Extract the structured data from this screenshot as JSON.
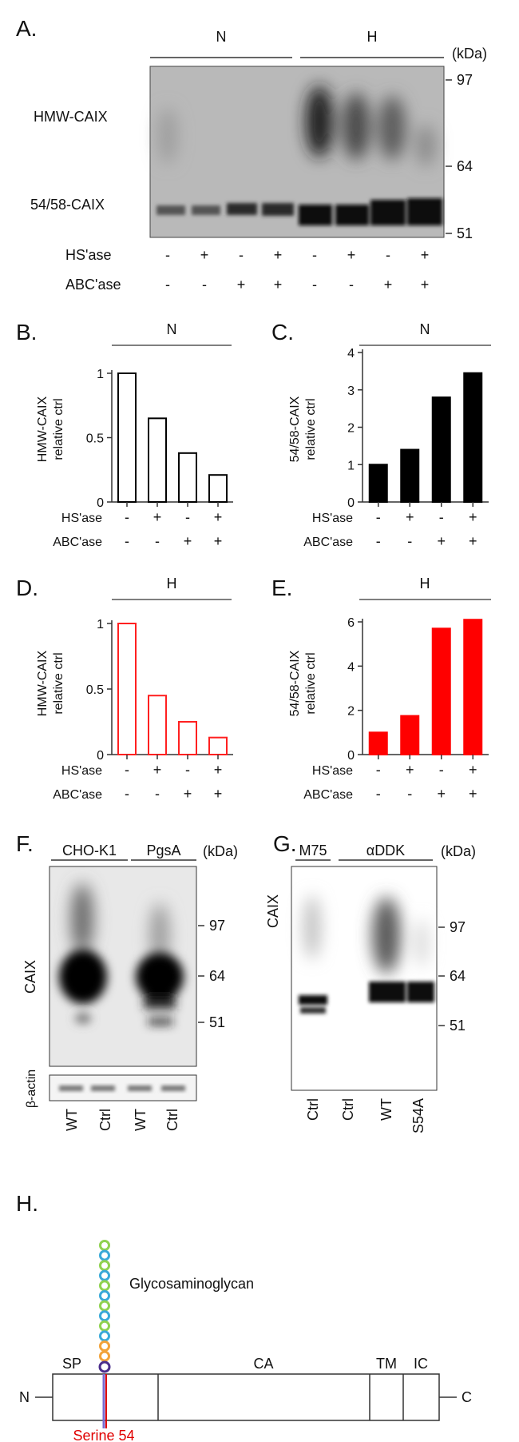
{
  "panels": {
    "A": {
      "letter": "A.",
      "groups": [
        "N",
        "H"
      ],
      "kda_label": "(kDa)",
      "markers": [
        "97",
        "64",
        "51"
      ],
      "bands": [
        "HMW-CAIX",
        "54/58-CAIX"
      ],
      "row1_label": "HS'ase",
      "row2_label": "ABC'ase",
      "row1": [
        "-",
        "+",
        "-",
        "+",
        "-",
        "+",
        "-",
        "+"
      ],
      "row2": [
        "-",
        "-",
        "+",
        "+",
        "-",
        "-",
        "+",
        "+"
      ]
    },
    "B": {
      "letter": "B.",
      "group": "N",
      "ylabel1": "HMW-CAIX",
      "ylabel2": "relative ctrl",
      "ticks": [
        "1",
        "0.5",
        "0"
      ],
      "row1_label": "HS'ase",
      "row2_label": "ABC'ase",
      "row1": [
        "-",
        "+",
        "-",
        "+"
      ],
      "row2": [
        "-",
        "-",
        "+",
        "+"
      ]
    },
    "C": {
      "letter": "C.",
      "group": "N",
      "ylabel1": "54/58-CAIX",
      "ylabel2": "relative ctrl",
      "ticks": [
        "4",
        "3",
        "2",
        "1",
        "0"
      ],
      "row1_label": "HS'ase",
      "row2_label": "ABC'ase",
      "row1": [
        "-",
        "+",
        "-",
        "+"
      ],
      "row2": [
        "-",
        "-",
        "+",
        "+"
      ]
    },
    "D": {
      "letter": "D.",
      "group": "H",
      "ylabel1": "HMW-CAIX",
      "ylabel2": "relative ctrl",
      "ticks": [
        "1",
        "0.5",
        "0"
      ],
      "row1_label": "HS'ase",
      "row2_label": "ABC'ase",
      "row1": [
        "-",
        "+",
        "-",
        "+"
      ],
      "row2": [
        "-",
        "-",
        "+",
        "+"
      ]
    },
    "E": {
      "letter": "E.",
      "group": "H",
      "ylabel1": "54/58-CAIX",
      "ylabel2": "relative ctrl",
      "ticks": [
        "6",
        "4",
        "2",
        "0"
      ],
      "row1_label": "HS'ase",
      "row2_label": "ABC'ase",
      "row1": [
        "-",
        "+",
        "-",
        "+"
      ],
      "row2": [
        "-",
        "-",
        "+",
        "+"
      ]
    },
    "F": {
      "letter": "F.",
      "groups": [
        "CHO-K1",
        "PgsA"
      ],
      "kda_label": "(kDa)",
      "markers": [
        "97",
        "64",
        "51"
      ],
      "protein": "CAIX",
      "loading": "β-actin",
      "lanes": [
        "WT",
        "Ctrl",
        "WT",
        "Ctrl"
      ]
    },
    "G": {
      "letter": "G.",
      "groups": [
        "M75",
        "αDDK"
      ],
      "kda_label": "(kDa)",
      "markers": [
        "97",
        "64",
        "51"
      ],
      "protein": "CAIX",
      "lanes": [
        "Ctrl",
        "Ctrl",
        "WT",
        "S54A"
      ]
    },
    "H": {
      "letter": "H.",
      "gag_label": "Glycosaminoglycan",
      "domains": [
        "SP",
        "CA",
        "TM",
        "IC"
      ],
      "n_term": "N",
      "c_term": "C",
      "site_label": "Serine 54"
    }
  },
  "colors": {
    "black_bar": "#000000",
    "red": "#ff0000",
    "red_outline": "#ff2020",
    "site": "#e00000"
  },
  "chart_data": [
    {
      "type": "bar",
      "panel": "B",
      "categories": [
        "1",
        "2",
        "3",
        "4"
      ],
      "values": [
        1.0,
        0.65,
        0.38,
        0.21
      ],
      "ylim": [
        0,
        1
      ],
      "style": "outline-black"
    },
    {
      "type": "bar",
      "panel": "C",
      "categories": [
        "1",
        "2",
        "3",
        "4"
      ],
      "values": [
        1.0,
        1.4,
        2.8,
        3.45
      ],
      "ylim": [
        0,
        4
      ],
      "style": "filled-black"
    },
    {
      "type": "bar",
      "panel": "D",
      "categories": [
        "1",
        "2",
        "3",
        "4"
      ],
      "values": [
        1.0,
        0.45,
        0.25,
        0.13
      ],
      "ylim": [
        0,
        1
      ],
      "style": "outline-red"
    },
    {
      "type": "bar",
      "panel": "E",
      "categories": [
        "1",
        "2",
        "3",
        "4"
      ],
      "values": [
        1.0,
        1.75,
        5.7,
        6.1
      ],
      "ylim": [
        0,
        6
      ],
      "style": "filled-red"
    }
  ]
}
